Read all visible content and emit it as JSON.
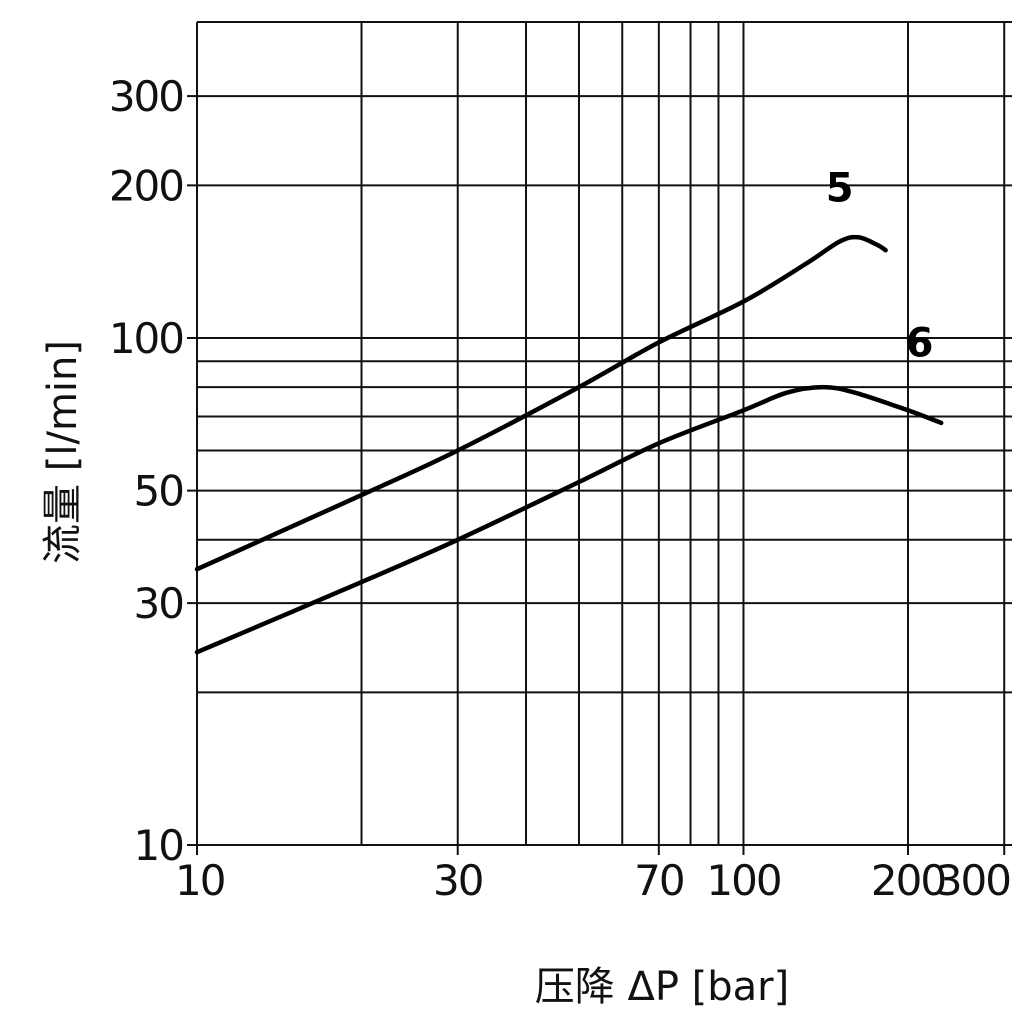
{
  "chart_data": {
    "type": "line",
    "xscale": "log",
    "yscale": "log",
    "xlim": [
      10,
      310
    ],
    "ylim": [
      10,
      420
    ],
    "xlabel": "压降 ΔP [bar]",
    "ylabel": "流量 [l/min]",
    "grid": true,
    "x_gridlines": [
      10,
      20,
      30,
      40,
      50,
      60,
      70,
      80,
      90,
      100,
      200,
      300
    ],
    "y_gridlines": [
      10,
      20,
      30,
      40,
      50,
      60,
      70,
      80,
      90,
      100,
      200,
      300
    ],
    "x_ticks": [
      {
        "value": 10,
        "label": "10"
      },
      {
        "value": 30,
        "label": "30"
      },
      {
        "value": 70,
        "label": "70"
      },
      {
        "value": 100,
        "label": "100"
      },
      {
        "value": 200,
        "label": "200"
      },
      {
        "value": 300,
        "label": "300"
      }
    ],
    "y_ticks": [
      {
        "value": 10,
        "label": "10"
      },
      {
        "value": 30,
        "label": "30"
      },
      {
        "value": 50,
        "label": "50"
      },
      {
        "value": 100,
        "label": "100"
      },
      {
        "value": 200,
        "label": "200"
      },
      {
        "value": 300,
        "label": "300"
      }
    ],
    "series": [
      {
        "name": "5",
        "points": [
          [
            10,
            35
          ],
          [
            20,
            49
          ],
          [
            30,
            60
          ],
          [
            50,
            80
          ],
          [
            70,
            98
          ],
          [
            100,
            118
          ],
          [
            130,
            140
          ],
          [
            150,
            155
          ],
          [
            162,
            158
          ],
          [
            175,
            153
          ],
          [
            182,
            149
          ]
        ]
      },
      {
        "name": "6",
        "points": [
          [
            10,
            24
          ],
          [
            20,
            33
          ],
          [
            30,
            40
          ],
          [
            50,
            52
          ],
          [
            70,
            62
          ],
          [
            100,
            72
          ],
          [
            120,
            78
          ],
          [
            140,
            80
          ],
          [
            160,
            78
          ],
          [
            200,
            72
          ],
          [
            230,
            68
          ]
        ]
      }
    ],
    "series_label_anchor": [
      {
        "name": "5",
        "at": [
          150,
          198
        ]
      },
      {
        "name": "6",
        "at": [
          210,
          98
        ]
      }
    ]
  }
}
